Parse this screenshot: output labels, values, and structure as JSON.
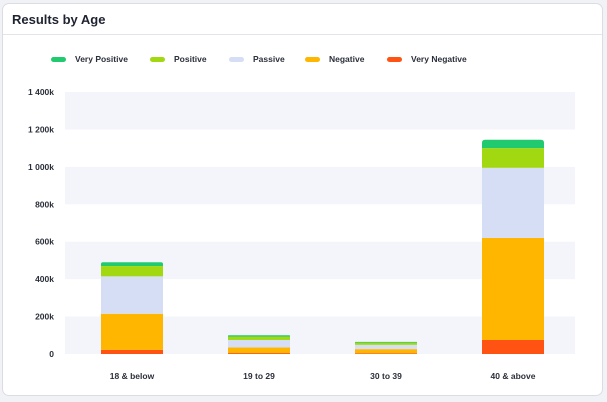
{
  "header": {
    "title": "Results by Age"
  },
  "chart_data": {
    "type": "bar",
    "stacked": true,
    "categories": [
      "18 & below",
      "19 to 29",
      "30 to 39",
      "40 & above"
    ],
    "y_ticks": [
      "0",
      "200k",
      "400k",
      "600k",
      "800k",
      "1 000k",
      "1 200k",
      "1 400k"
    ],
    "ylim": [
      0,
      1400000
    ],
    "legend_position": "top",
    "grid": "alternating horizontal bands",
    "series": [
      {
        "name": "Very Negative",
        "color": "#ff5314",
        "values": [
          22000,
          5000,
          4000,
          75000
        ]
      },
      {
        "name": "Negative",
        "color": "#ffb600",
        "values": [
          193000,
          30000,
          22000,
          545000
        ]
      },
      {
        "name": "Passive",
        "color": "#d6def5",
        "values": [
          200000,
          40000,
          23000,
          375000
        ]
      },
      {
        "name": "Positive",
        "color": "#a2d80f",
        "values": [
          55000,
          18000,
          12000,
          105000
        ]
      },
      {
        "name": "Very Positive",
        "color": "#21c96f",
        "values": [
          20000,
          7000,
          4000,
          45000
        ]
      }
    ]
  },
  "legend": [
    {
      "name": "Very Positive",
      "color": "#21c96f"
    },
    {
      "name": "Positive",
      "color": "#a2d80f"
    },
    {
      "name": "Passive",
      "color": "#d6def5"
    },
    {
      "name": "Negative",
      "color": "#ffb600"
    },
    {
      "name": "Very Negative",
      "color": "#ff5314"
    }
  ]
}
